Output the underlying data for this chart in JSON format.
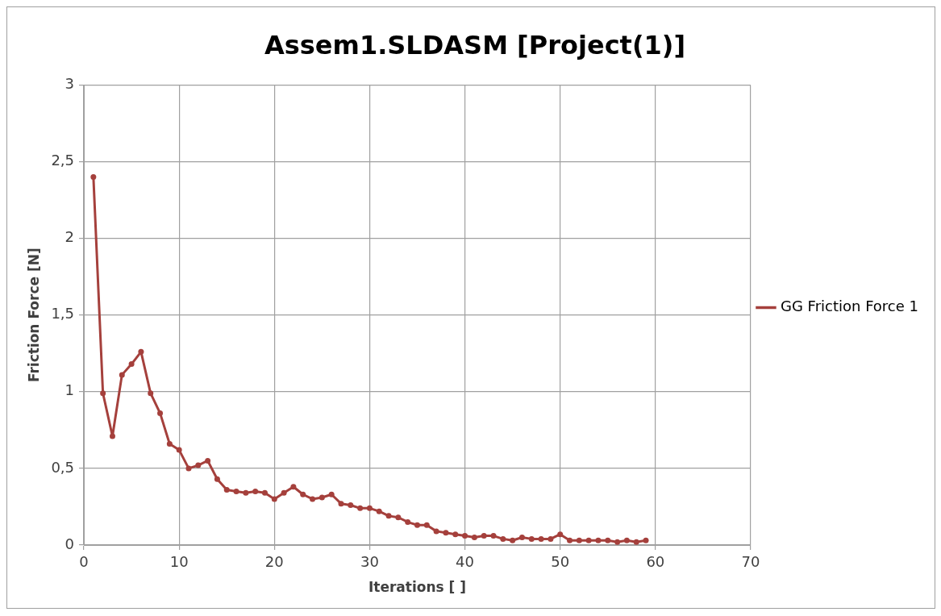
{
  "chart_data": {
    "type": "line",
    "title": "Assem1.SLDASM [Project(1)]",
    "xlabel": "Iterations [ ]",
    "ylabel": "Friction Force [N]",
    "x": [
      1,
      2,
      3,
      4,
      5,
      6,
      7,
      8,
      9,
      10,
      11,
      12,
      13,
      14,
      15,
      16,
      17,
      18,
      19,
      20,
      21,
      22,
      23,
      24,
      25,
      26,
      27,
      28,
      29,
      30,
      31,
      32,
      33,
      34,
      35,
      36,
      37,
      38,
      39,
      40,
      41,
      42,
      43,
      44,
      45,
      46,
      47,
      48,
      49,
      50,
      51,
      52,
      53,
      54,
      55,
      56,
      57,
      58,
      59
    ],
    "series": [
      {
        "name": "GG Friction Force 1",
        "color": "#a5403c",
        "values": [
          2.4,
          0.99,
          0.71,
          1.11,
          1.18,
          1.26,
          0.99,
          0.86,
          0.66,
          0.62,
          0.5,
          0.52,
          0.55,
          0.43,
          0.36,
          0.35,
          0.34,
          0.35,
          0.34,
          0.3,
          0.34,
          0.38,
          0.33,
          0.3,
          0.31,
          0.33,
          0.27,
          0.26,
          0.24,
          0.24,
          0.22,
          0.19,
          0.18,
          0.15,
          0.13,
          0.13,
          0.09,
          0.08,
          0.07,
          0.06,
          0.05,
          0.06,
          0.06,
          0.04,
          0.03,
          0.05,
          0.04,
          0.04,
          0.04,
          0.07,
          0.03,
          0.03,
          0.03,
          0.03,
          0.03,
          0.02,
          0.03,
          0.02,
          0.03
        ]
      }
    ],
    "xlim": [
      0,
      70
    ],
    "xticks": [
      0,
      10,
      20,
      30,
      40,
      50,
      60,
      70
    ],
    "ylim": [
      0,
      3
    ],
    "yticks": [
      0,
      {
        "value": 0.5,
        "label": "0,5"
      },
      1,
      {
        "value": 1.5,
        "label": "1,5"
      },
      2,
      {
        "value": 2.5,
        "label": "2,5"
      },
      3
    ],
    "grid": true,
    "legend": "right",
    "marker": "circle",
    "line_style": "solid"
  }
}
